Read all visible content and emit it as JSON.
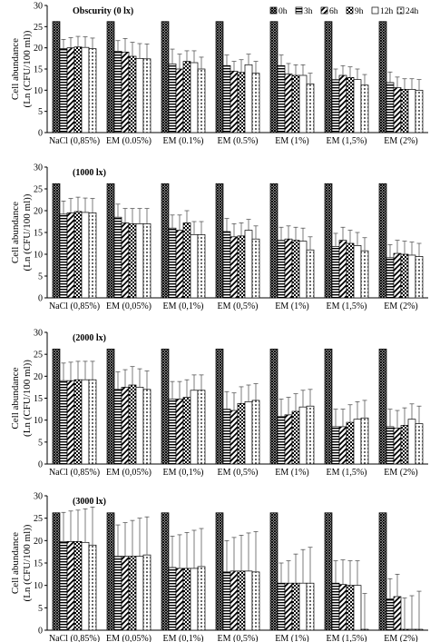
{
  "chart_data": [
    {
      "type": "bar",
      "title": "Obscurity (0 lx)",
      "ylabel": "Cell abundance\n(Ln (CFU/100 ml))",
      "ylim": [
        0,
        30
      ],
      "yticks": [
        0,
        5,
        10,
        15,
        20,
        25,
        30
      ],
      "legend": "top-right",
      "series_names": [
        "0h",
        "3h",
        "6h",
        "9h",
        "12h",
        "24h"
      ],
      "categories": [
        "NaCl (0,85%)",
        "EM (0.05%)",
        "EM (0.1%)",
        "EM (0.5%)",
        "EM (1%)",
        "EM (1,5%)",
        "EM (2%)"
      ],
      "values": [
        [
          26.2,
          19.8,
          20.0,
          20.2,
          20.1,
          19.8
        ],
        [
          26.2,
          19.2,
          19.0,
          18.0,
          17.5,
          17.4
        ],
        [
          26.2,
          16.2,
          15.0,
          16.8,
          16.5,
          15.0
        ],
        [
          26.2,
          15.8,
          14.5,
          14.2,
          16.0,
          14.0
        ],
        [
          26.2,
          15.8,
          13.8,
          13.5,
          13.5,
          11.5
        ],
        [
          26.2,
          12.5,
          13.5,
          13.0,
          12.5,
          11.2
        ],
        [
          26.2,
          11.8,
          10.6,
          10.2,
          10.2,
          10.0
        ]
      ],
      "errors": [
        [
          0,
          2.2,
          2.4,
          2.5,
          2.5,
          2.5
        ],
        [
          0,
          2.5,
          3.2,
          3.3,
          3.5,
          3.5
        ],
        [
          0,
          3.5,
          3.5,
          2.5,
          2.8,
          2.8
        ],
        [
          0,
          2.5,
          2.3,
          3.0,
          2.5,
          2.8
        ],
        [
          0,
          2.5,
          2.5,
          2.5,
          2.5,
          2.5
        ],
        [
          0,
          2.5,
          2.3,
          2.5,
          2.5,
          2.5
        ],
        [
          0,
          2.5,
          2.5,
          2.5,
          2.5,
          2.5
        ]
      ]
    },
    {
      "type": "bar",
      "title": "(1000 lx)",
      "ylabel": "Cell abundance\n(Ln (CFU/100 ml))",
      "ylim": [
        0,
        30
      ],
      "yticks": [
        0,
        5,
        10,
        15,
        20,
        25,
        30
      ],
      "categories": [
        "NaCl (0,85%)",
        "EM (0,05%)",
        "EM (0,1%)",
        "EM (0,5%)",
        "EM (1%)",
        "EM (1,5%)",
        "EM (2%)"
      ],
      "values": [
        [
          26.2,
          19.2,
          19.5,
          19.8,
          19.6,
          19.5
        ],
        [
          26.2,
          18.5,
          17.2,
          17.0,
          17.0,
          17.0
        ],
        [
          26.2,
          16.0,
          15.5,
          17.2,
          14.5,
          14.5
        ],
        [
          26.2,
          15.2,
          14.0,
          14.2,
          15.5,
          13.5
        ],
        [
          26.2,
          13.2,
          13.5,
          13.2,
          13.0,
          11.0
        ],
        [
          26.2,
          11.8,
          13.2,
          12.5,
          12.0,
          10.8
        ],
        [
          26.2,
          9.2,
          10.2,
          10.0,
          9.8,
          9.5
        ]
      ],
      "errors": [
        [
          0,
          3.0,
          3.3,
          3.3,
          3.3,
          3.3
        ],
        [
          0,
          3.0,
          3.3,
          3.5,
          3.5,
          3.5
        ],
        [
          0,
          3.0,
          3.5,
          2.8,
          3.0,
          3.0
        ],
        [
          0,
          3.0,
          3.0,
          3.0,
          2.5,
          3.0
        ],
        [
          0,
          3.0,
          3.0,
          3.0,
          3.0,
          3.0
        ],
        [
          0,
          3.0,
          3.0,
          3.0,
          3.0,
          3.0
        ],
        [
          0,
          3.0,
          3.0,
          3.0,
          3.0,
          3.0
        ]
      ]
    },
    {
      "type": "bar",
      "title": "(2000 lx)",
      "ylabel": "Cell abundance\n(Ln (CFU/100 ml))",
      "ylim": [
        0,
        30
      ],
      "yticks": [
        0,
        5,
        10,
        15,
        20,
        25,
        30
      ],
      "categories": [
        "NaCl (0,85%)",
        "EM (0,05%)",
        "EM (0,1%)",
        "EM (0,5%)",
        "EM (1%)",
        "EM (1,5%)",
        "EM (2%)"
      ],
      "values": [
        [
          26.2,
          19.0,
          19.0,
          19.2,
          19.2,
          19.2
        ],
        [
          26.2,
          17.0,
          17.5,
          18.0,
          17.5,
          17.0
        ],
        [
          26.2,
          14.8,
          14.8,
          15.2,
          16.8,
          16.8
        ],
        [
          26.2,
          12.5,
          12.2,
          13.8,
          14.2,
          14.5
        ],
        [
          26.2,
          10.8,
          11.2,
          12.0,
          13.0,
          13.2
        ],
        [
          26.2,
          8.5,
          8.5,
          9.5,
          10.2,
          10.5
        ],
        [
          26.2,
          8.5,
          8.2,
          8.8,
          10.2,
          9.2
        ]
      ],
      "errors": [
        [
          0,
          4.0,
          4.2,
          4.2,
          4.2,
          4.2
        ],
        [
          0,
          4.0,
          4.0,
          4.2,
          4.2,
          4.2
        ],
        [
          0,
          4.0,
          4.0,
          4.0,
          3.5,
          3.5
        ],
        [
          0,
          4.0,
          4.0,
          3.8,
          3.8,
          3.8
        ],
        [
          0,
          4.0,
          4.0,
          4.0,
          3.8,
          3.8
        ],
        [
          0,
          4.0,
          4.0,
          4.0,
          4.0,
          4.0
        ],
        [
          0,
          4.0,
          4.0,
          4.0,
          3.5,
          4.0
        ]
      ]
    },
    {
      "type": "bar",
      "title": "(3000 lx)",
      "ylabel": "Cell abundance\n(Ln (CFU/100 ml))",
      "ylim": [
        0,
        30
      ],
      "yticks": [
        0,
        5,
        10,
        15,
        20,
        25,
        30
      ],
      "categories": [
        "NaCl (0,85%)",
        "EM (0,05%)",
        "EM (0,1%)",
        "EM (0,5%)",
        "EM (1%)",
        "EM (1,5%)",
        "EM (2%)"
      ],
      "values": [
        [
          26.2,
          19.8,
          19.8,
          19.8,
          19.6,
          19.0
        ],
        [
          26.2,
          16.5,
          16.5,
          16.5,
          16.5,
          16.8
        ],
        [
          26.2,
          14.0,
          13.8,
          13.8,
          13.8,
          14.2
        ],
        [
          26.2,
          13.0,
          13.2,
          13.2,
          13.2,
          13.0
        ],
        [
          26.2,
          10.5,
          10.5,
          10.5,
          10.5,
          10.5
        ],
        [
          26.2,
          10.5,
          10.2,
          10.0,
          10.0,
          0.2
        ],
        [
          26.2,
          7.0,
          7.5,
          0.2,
          0.2,
          0.2
        ]
      ],
      "errors": [
        [
          0,
          6.5,
          6.8,
          7.0,
          7.5,
          8.5
        ],
        [
          0,
          7.0,
          7.5,
          8.0,
          8.5,
          8.5
        ],
        [
          0,
          7.0,
          7.5,
          8.0,
          8.5,
          8.5
        ],
        [
          0,
          7.0,
          7.5,
          8.0,
          8.5,
          9.0
        ],
        [
          0,
          4.5,
          5.0,
          6.5,
          7.5,
          8.0
        ],
        [
          0,
          5.0,
          5.5,
          5.5,
          5.5,
          8.0
        ],
        [
          0,
          4.5,
          5.0,
          7.0,
          7.5,
          8.5
        ]
      ]
    }
  ]
}
